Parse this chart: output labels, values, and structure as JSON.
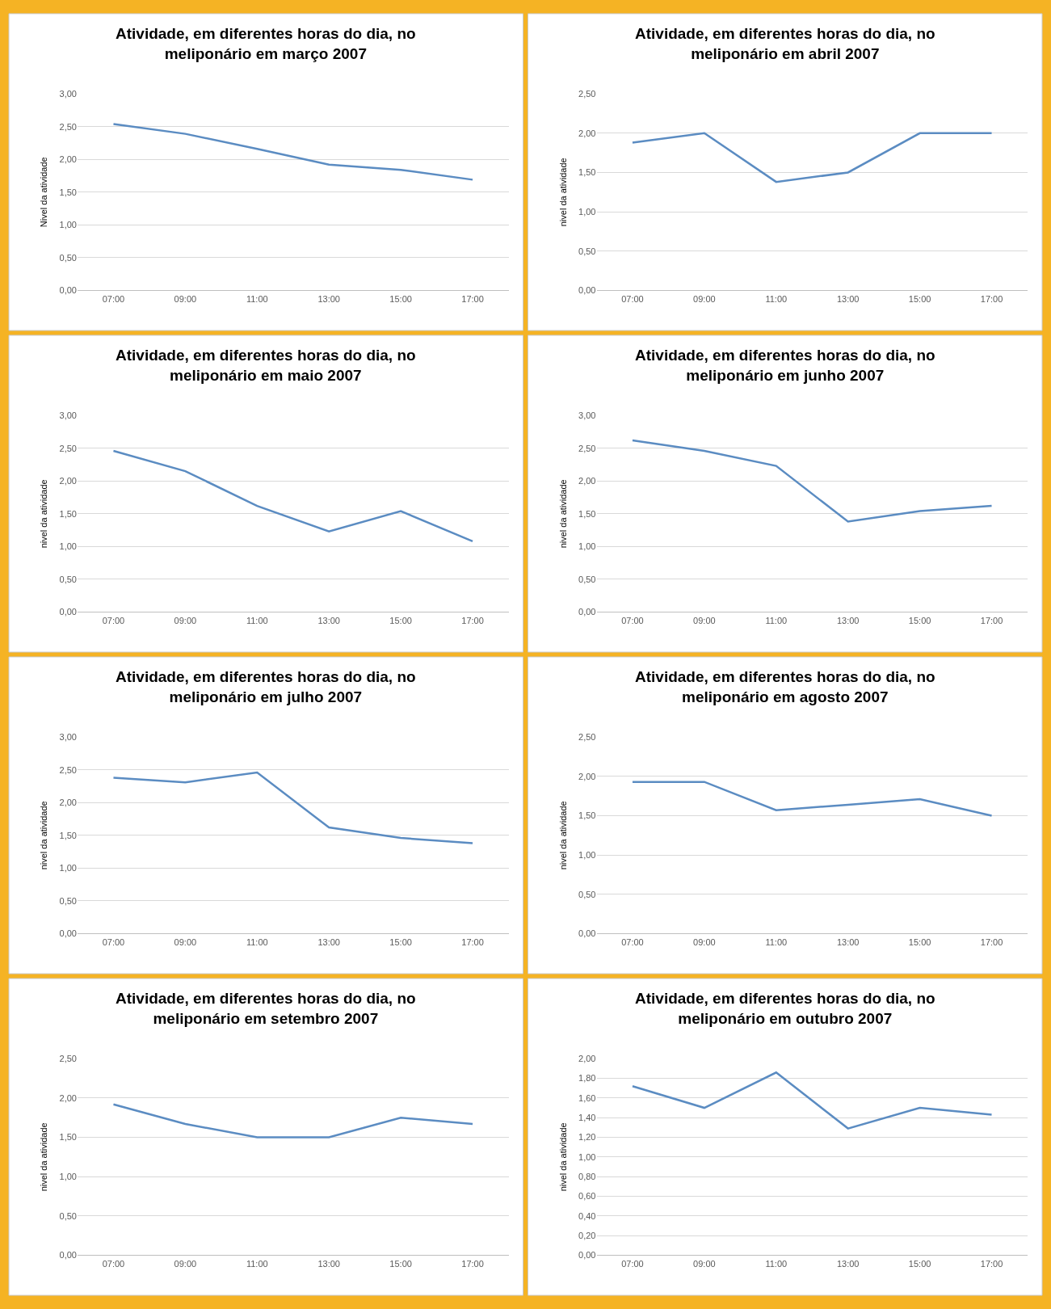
{
  "chart_data": [
    {
      "type": "line",
      "title": "Atividade, em diferentes horas do dia, no meliponário em março 2007",
      "ylabel": "Nivel da atividade",
      "categories": [
        "07:00",
        "09:00",
        "11:00",
        "13:00",
        "15:00",
        "17:00"
      ],
      "series": [
        {
          "color": "#5b8cc2",
          "values": [
            2.54,
            2.39,
            2.16,
            1.92,
            1.84,
            1.69
          ]
        }
      ],
      "ylim": [
        0,
        3
      ],
      "yticks": [
        {
          "value": 0,
          "label": "0,00"
        },
        {
          "value": 0.5,
          "label": "0,50"
        },
        {
          "value": 1,
          "label": "1,00"
        },
        {
          "value": 1.5,
          "label": "1,50"
        },
        {
          "value": 2,
          "label": "2,00"
        },
        {
          "value": 2.5,
          "label": "2,50"
        },
        {
          "value": 3,
          "label": "3,00"
        }
      ],
      "grid": "y"
    },
    {
      "type": "line",
      "title": "Atividade, em diferentes horas do dia, no meliponário em abril 2007",
      "ylabel": "nivel da atividade",
      "categories": [
        "07:00",
        "09:00",
        "11:00",
        "13:00",
        "15:00",
        "17:00"
      ],
      "series": [
        {
          "color": "#5b8cc2",
          "values": [
            1.88,
            2.0,
            1.38,
            1.5,
            2.0,
            2.0
          ]
        }
      ],
      "ylim": [
        0,
        2.5
      ],
      "yticks": [
        {
          "value": 0,
          "label": "0,00"
        },
        {
          "value": 0.5,
          "label": "0,50"
        },
        {
          "value": 1,
          "label": "1,00"
        },
        {
          "value": 1.5,
          "label": "1,50"
        },
        {
          "value": 2,
          "label": "2,00"
        },
        {
          "value": 2.5,
          "label": "2,50"
        }
      ],
      "grid": "y"
    },
    {
      "type": "line",
      "title": "Atividade, em diferentes horas do dia, no meliponário em maio 2007",
      "ylabel": "nivel da atividade",
      "categories": [
        "07:00",
        "09:00",
        "11:00",
        "13:00",
        "15:00",
        "17:00"
      ],
      "series": [
        {
          "color": "#5b8cc2",
          "values": [
            2.46,
            2.15,
            1.62,
            1.23,
            1.54,
            1.08
          ]
        }
      ],
      "ylim": [
        0,
        3
      ],
      "yticks": [
        {
          "value": 0,
          "label": "0,00"
        },
        {
          "value": 0.5,
          "label": "0,50"
        },
        {
          "value": 1,
          "label": "1,00"
        },
        {
          "value": 1.5,
          "label": "1,50"
        },
        {
          "value": 2,
          "label": "2,00"
        },
        {
          "value": 2.5,
          "label": "2,50"
        },
        {
          "value": 3,
          "label": "3,00"
        }
      ],
      "grid": "y"
    },
    {
      "type": "line",
      "title": "Atividade, em diferentes horas do dia, no meliponário em junho 2007",
      "ylabel": "nivel da atividade",
      "categories": [
        "07:00",
        "09:00",
        "11:00",
        "13:00",
        "15:00",
        "17:00"
      ],
      "series": [
        {
          "color": "#5b8cc2",
          "values": [
            2.62,
            2.46,
            2.23,
            1.38,
            1.54,
            1.62
          ]
        }
      ],
      "ylim": [
        0,
        3
      ],
      "yticks": [
        {
          "value": 0,
          "label": "0,00"
        },
        {
          "value": 0.5,
          "label": "0,50"
        },
        {
          "value": 1,
          "label": "1,00"
        },
        {
          "value": 1.5,
          "label": "1,50"
        },
        {
          "value": 2,
          "label": "2,00"
        },
        {
          "value": 2.5,
          "label": "2,50"
        },
        {
          "value": 3,
          "label": "3,00"
        }
      ],
      "grid": "y"
    },
    {
      "type": "line",
      "title": "Atividade, em diferentes horas do dia, no meliponário em julho 2007",
      "ylabel": "nivel da atividade",
      "categories": [
        "07:00",
        "09:00",
        "11:00",
        "13:00",
        "15:00",
        "17:00"
      ],
      "series": [
        {
          "color": "#5b8cc2",
          "values": [
            2.38,
            2.31,
            2.46,
            1.62,
            1.46,
            1.38
          ]
        }
      ],
      "ylim": [
        0,
        3
      ],
      "yticks": [
        {
          "value": 0,
          "label": "0,00"
        },
        {
          "value": 0.5,
          "label": "0,50"
        },
        {
          "value": 1,
          "label": "1,00"
        },
        {
          "value": 1.5,
          "label": "1,50"
        },
        {
          "value": 2,
          "label": "2,00"
        },
        {
          "value": 2.5,
          "label": "2,50"
        },
        {
          "value": 3,
          "label": "3,00"
        }
      ],
      "grid": "y"
    },
    {
      "type": "line",
      "title": "Atividade, em diferentes horas do dia, no meliponário em agosto 2007",
      "ylabel": "nivel da atividade",
      "categories": [
        "07:00",
        "09:00",
        "11:00",
        "13:00",
        "15:00",
        "17:00"
      ],
      "series": [
        {
          "color": "#5b8cc2",
          "values": [
            1.93,
            1.93,
            1.57,
            1.64,
            1.71,
            1.5
          ]
        }
      ],
      "ylim": [
        0,
        2.5
      ],
      "yticks": [
        {
          "value": 0,
          "label": "0,00"
        },
        {
          "value": 0.5,
          "label": "0,50"
        },
        {
          "value": 1,
          "label": "1,00"
        },
        {
          "value": 1.5,
          "label": "1,50"
        },
        {
          "value": 2,
          "label": "2,00"
        },
        {
          "value": 2.5,
          "label": "2,50"
        }
      ],
      "grid": "y"
    },
    {
      "type": "line",
      "title": "Atividade, em diferentes horas do dia, no meliponário em setembro 2007",
      "ylabel": "nivel da atividade",
      "categories": [
        "07:00",
        "09:00",
        "11:00",
        "13:00",
        "15:00",
        "17:00"
      ],
      "series": [
        {
          "color": "#5b8cc2",
          "values": [
            1.92,
            1.67,
            1.5,
            1.5,
            1.75,
            1.67
          ]
        }
      ],
      "ylim": [
        0,
        2.5
      ],
      "yticks": [
        {
          "value": 0,
          "label": "0,00"
        },
        {
          "value": 0.5,
          "label": "0,50"
        },
        {
          "value": 1,
          "label": "1,00"
        },
        {
          "value": 1.5,
          "label": "1,50"
        },
        {
          "value": 2,
          "label": "2,00"
        },
        {
          "value": 2.5,
          "label": "2,50"
        }
      ],
      "grid": "y"
    },
    {
      "type": "line",
      "title": "Atividade, em diferentes horas do dia, no meliponário em outubro 2007",
      "ylabel": "nivel da atividade",
      "categories": [
        "07:00",
        "09:00",
        "11:00",
        "13:00",
        "15:00",
        "17:00"
      ],
      "series": [
        {
          "color": "#5b8cc2",
          "values": [
            1.72,
            1.5,
            1.86,
            1.29,
            1.5,
            1.43
          ]
        }
      ],
      "ylim": [
        0,
        2
      ],
      "yticks": [
        {
          "value": 0,
          "label": "0,00"
        },
        {
          "value": 0.2,
          "label": "0,20"
        },
        {
          "value": 0.4,
          "label": "0,40"
        },
        {
          "value": 0.6,
          "label": "0,60"
        },
        {
          "value": 0.8,
          "label": "0,80"
        },
        {
          "value": 1,
          "label": "1,00"
        },
        {
          "value": 1.2,
          "label": "1,20"
        },
        {
          "value": 1.4,
          "label": "1,40"
        },
        {
          "value": 1.6,
          "label": "1,60"
        },
        {
          "value": 1.8,
          "label": "1,80"
        },
        {
          "value": 2,
          "label": "2,00"
        }
      ],
      "grid": "y"
    }
  ]
}
